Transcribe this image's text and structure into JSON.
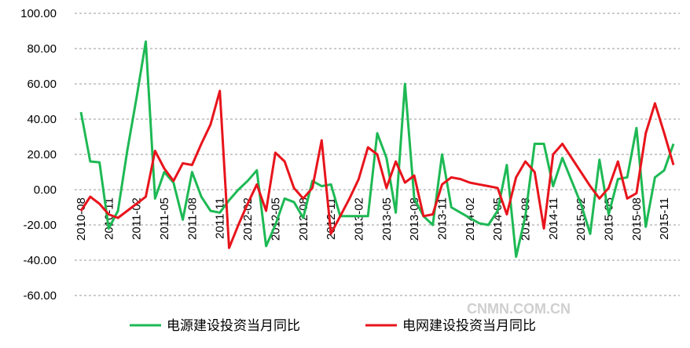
{
  "chart_data": {
    "type": "line",
    "categories": [
      "2010-08",
      null,
      null,
      "2010-11",
      null,
      null,
      "2011-02",
      null,
      null,
      "2011-05",
      null,
      null,
      "2011-08",
      null,
      null,
      "2011-11",
      null,
      null,
      "2012-02",
      null,
      null,
      "2012-05",
      null,
      null,
      "2012-08",
      null,
      null,
      "2012-11",
      null,
      null,
      "2013-02",
      null,
      null,
      "2013-05",
      null,
      null,
      "2013-08",
      null,
      null,
      "2013-11",
      null,
      null,
      "2014-02",
      null,
      null,
      "2014-05",
      null,
      null,
      "2014-08",
      null,
      null,
      "2014-11",
      null,
      null,
      "2015-02",
      null,
      null,
      "2015-05",
      null,
      null,
      "2015-08",
      null,
      null,
      "2015-11",
      null
    ],
    "series": [
      {
        "name": "电源建设投资当月同比",
        "color": "#1db954",
        "values": [
          44,
          16,
          15.5,
          -22,
          -12,
          22,
          52,
          84,
          -5,
          10,
          4,
          -17,
          10,
          -4,
          -12,
          -13,
          -6,
          0,
          5,
          11,
          -32,
          -20,
          -5,
          -7,
          -16,
          5,
          2,
          3,
          -15,
          -15,
          -15,
          -15,
          32,
          18,
          -13,
          60,
          -5,
          -15,
          -20,
          20,
          -10,
          -13,
          -16,
          -19,
          -20,
          -12,
          14,
          -38,
          -15,
          26,
          26,
          2,
          18,
          5,
          -8,
          -25,
          17,
          -14,
          6,
          7,
          35,
          -21,
          7,
          11,
          26
        ]
      },
      {
        "name": "电网建设投资当月同比",
        "color": "#e8141c",
        "values": [
          -12,
          -4,
          -8,
          -14,
          -16,
          -12,
          -8,
          -4,
          22,
          12,
          5,
          15,
          14,
          26,
          37,
          56,
          -33,
          -20,
          -8,
          3,
          -12,
          21,
          16,
          1,
          -5,
          1,
          28,
          -25,
          -15,
          -5,
          6,
          24,
          20,
          1,
          16,
          4,
          8,
          -15,
          -14,
          3,
          7,
          6,
          4,
          3,
          2,
          1,
          -14,
          7,
          16,
          10,
          -22,
          20,
          26,
          18,
          10,
          2,
          -5,
          1,
          16,
          -5,
          -2,
          32,
          49,
          32,
          14
        ]
      }
    ],
    "ylim": [
      -60,
      100
    ],
    "yticks": [
      {
        "value": -60,
        "label": "-60.00"
      },
      {
        "value": -40,
        "label": "-40.00"
      },
      {
        "value": -20,
        "label": "-20.00"
      },
      {
        "value": 0,
        "label": "0.00"
      },
      {
        "value": 20,
        "label": "20.00"
      },
      {
        "value": 40,
        "label": "40.00"
      },
      {
        "value": 60,
        "label": "60.00"
      },
      {
        "value": 80,
        "label": "80.00"
      },
      {
        "value": 100,
        "label": "100.00"
      }
    ],
    "grid": true,
    "legend": "bottom",
    "watermark": "CNMN.COM.CN"
  }
}
